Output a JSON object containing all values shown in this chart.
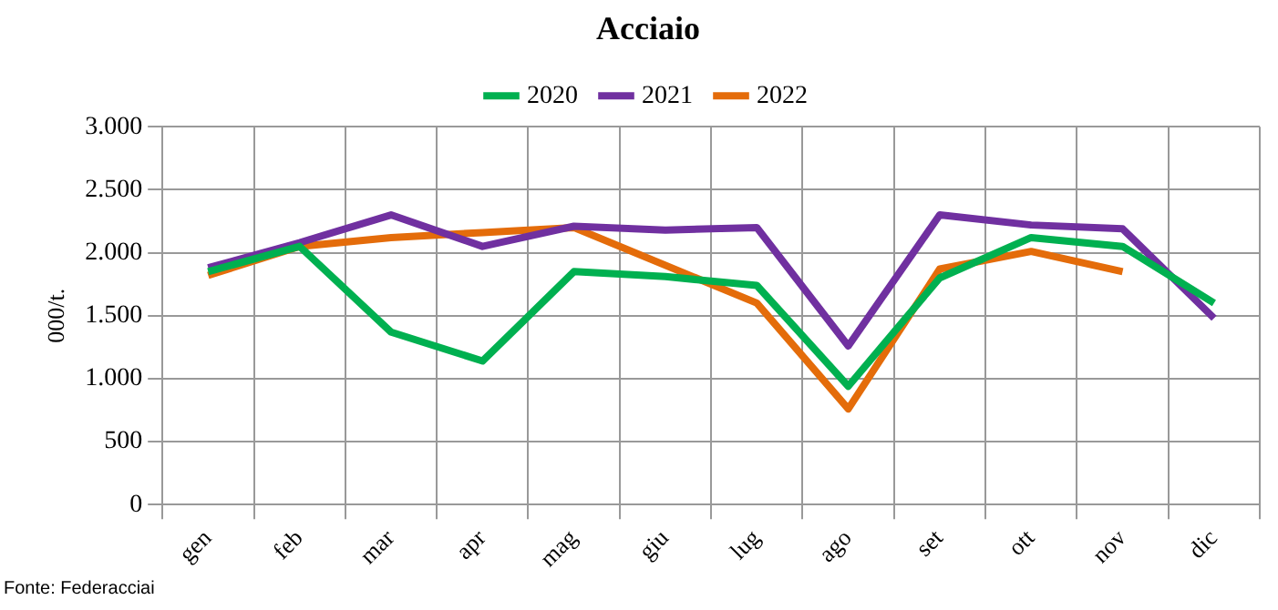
{
  "chart_data": {
    "type": "line",
    "title": "Acciaio",
    "ylabel": "000/t.",
    "categories": [
      "gen",
      "feb",
      "mar",
      "apr",
      "mag",
      "giu",
      "lug",
      "ago",
      "set",
      "ott",
      "nov",
      "dic"
    ],
    "series": [
      {
        "name": "2020",
        "color": "#00b050",
        "values": [
          1850,
          2050,
          1370,
          1140,
          1850,
          1810,
          1740,
          940,
          1800,
          2120,
          2050,
          1600
        ]
      },
      {
        "name": "2021",
        "color": "#7030a0",
        "values": [
          1880,
          2080,
          2300,
          2050,
          2210,
          2180,
          2200,
          1260,
          2300,
          2220,
          2190,
          1480
        ]
      },
      {
        "name": "2022",
        "color": "#e46c0a",
        "values": [
          1820,
          2050,
          2120,
          2160,
          2200,
          1900,
          1600,
          760,
          1870,
          2010,
          1850,
          null
        ]
      }
    ],
    "ylim": [
      0,
      3000
    ],
    "yticks": [
      0,
      500,
      {
        "value": 1000,
        "label": "1.000"
      },
      {
        "value": 1500,
        "label": "1.500"
      },
      {
        "value": 2000,
        "label": "2.000"
      },
      {
        "value": 2500,
        "label": "2.500"
      },
      {
        "value": 3000,
        "label": "3.000"
      }
    ],
    "grid": true,
    "legend": "top",
    "marker": "none",
    "line_style": "solid",
    "annotations": [
      "Fonte: Federacciai"
    ]
  }
}
